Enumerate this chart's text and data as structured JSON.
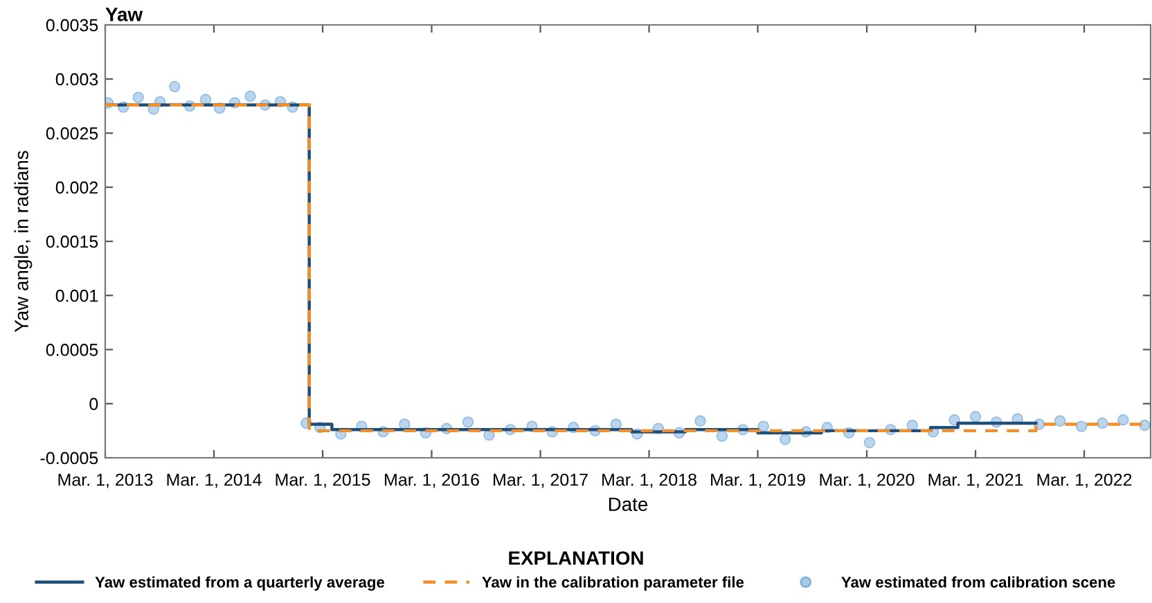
{
  "chart_data": {
    "type": "step",
    "title": "Yaw",
    "xlabel": "Date",
    "ylabel": "Yaw angle, in radians",
    "legend_title": "EXPLANATION",
    "legend": "bottom",
    "grid": false,
    "xlim": [
      "2013-03-01",
      "2022-10-10"
    ],
    "xticks": [
      {
        "value": "2013-03-01",
        "label": "Mar. 1, 2013"
      },
      {
        "value": "2014-03-01",
        "label": "Mar. 1, 2014"
      },
      {
        "value": "2015-03-01",
        "label": "Mar. 1, 2015"
      },
      {
        "value": "2016-03-01",
        "label": "Mar. 1, 2016"
      },
      {
        "value": "2017-03-01",
        "label": "Mar. 1, 2017"
      },
      {
        "value": "2018-03-01",
        "label": "Mar. 1, 2018"
      },
      {
        "value": "2019-03-01",
        "label": "Mar. 1, 2019"
      },
      {
        "value": "2020-03-01",
        "label": "Mar. 1, 2020"
      },
      {
        "value": "2021-03-01",
        "label": "Mar. 1, 2021"
      },
      {
        "value": "2022-03-01",
        "label": "Mar. 1, 2022"
      }
    ],
    "ylim": [
      -0.0005,
      0.0035
    ],
    "yticks": [
      {
        "value": -0.0005,
        "label": "-0.0005"
      },
      {
        "value": 0,
        "label": "0"
      },
      {
        "value": 0.0005,
        "label": "0.0005"
      },
      {
        "value": 0.001,
        "label": "0.001"
      },
      {
        "value": 0.0015,
        "label": "0.0015"
      },
      {
        "value": 0.002,
        "label": "0.002"
      },
      {
        "value": 0.0025,
        "label": "0.0025"
      },
      {
        "value": 0.003,
        "label": "0.003"
      },
      {
        "value": 0.0035,
        "label": "0.0035"
      }
    ],
    "series": [
      {
        "name": "Yaw estimated from calibration scene",
        "type": "scatter",
        "color": "#a9cbe8",
        "marker": "circle",
        "x": [
          "2013-03-10",
          "2013-05-01",
          "2013-06-20",
          "2013-08-10",
          "2013-09-01",
          "2013-10-20",
          "2013-12-10",
          "2014-02-01",
          "2014-03-20",
          "2014-05-10",
          "2014-07-01",
          "2014-08-20",
          "2014-10-10",
          "2014-11-20",
          "2015-01-05",
          "2015-02-20",
          "2015-05-01",
          "2015-07-10",
          "2015-09-20",
          "2015-12-01",
          "2016-02-10",
          "2016-04-20",
          "2016-07-01",
          "2016-09-10",
          "2016-11-20",
          "2017-02-01",
          "2017-04-10",
          "2017-06-20",
          "2017-09-01",
          "2017-11-10",
          "2018-01-20",
          "2018-04-01",
          "2018-06-10",
          "2018-08-20",
          "2018-11-01",
          "2019-01-10",
          "2019-03-20",
          "2019-06-01",
          "2019-08-10",
          "2019-10-20",
          "2020-01-01",
          "2020-03-10",
          "2020-05-20",
          "2020-08-01",
          "2020-10-10",
          "2020-12-20",
          "2021-03-01",
          "2021-05-10",
          "2021-07-20",
          "2021-10-01",
          "2021-12-10",
          "2022-02-20",
          "2022-05-01",
          "2022-07-10",
          "2022-09-20"
        ],
        "values": [
          0.00278,
          0.00274,
          0.00283,
          0.00272,
          0.00279,
          0.00293,
          0.00275,
          0.00281,
          0.00273,
          0.00278,
          0.00284,
          0.00276,
          0.00279,
          0.00274,
          -0.00018,
          -0.00022,
          -0.00028,
          -0.00021,
          -0.00026,
          -0.00019,
          -0.00027,
          -0.00023,
          -0.00017,
          -0.00029,
          -0.00024,
          -0.00021,
          -0.00026,
          -0.00022,
          -0.00025,
          -0.00019,
          -0.00028,
          -0.00023,
          -0.00027,
          -0.00016,
          -0.0003,
          -0.00024,
          -0.00021,
          -0.00033,
          -0.00026,
          -0.00022,
          -0.00027,
          -0.00036,
          -0.00024,
          -0.0002,
          -0.00026,
          -0.00015,
          -0.00012,
          -0.00017,
          -0.00014,
          -0.00019,
          -0.00016,
          -0.00021,
          -0.00018,
          -0.00015,
          -0.0002
        ]
      },
      {
        "name": "Yaw estimated from a quarterly average",
        "color": "#1f4e79",
        "line_style": "solid",
        "x": [
          "2013-03-01",
          "2015-01-15",
          "2015-04-01",
          "2016-01-01",
          "2018-01-01",
          "2018-07-01",
          "2019-01-01",
          "2019-03-01",
          "2019-10-01",
          "2020-10-01",
          "2021-01-01",
          "2021-09-20"
        ],
        "values": [
          0.00276,
          -0.00019,
          -0.00024,
          -0.00024,
          -0.00026,
          -0.00024,
          -0.00024,
          -0.00027,
          -0.00025,
          -0.00022,
          -0.00018,
          -0.00018
        ]
      },
      {
        "name": "Yaw in the calibration parameter file",
        "color": "#f28e2b",
        "line_style": "dashed",
        "x": [
          "2013-03-01",
          "2015-01-15",
          "2021-09-20",
          "2022-09-30"
        ],
        "values": [
          0.00276,
          -0.00025,
          -0.00019,
          -0.00019
        ]
      }
    ]
  }
}
